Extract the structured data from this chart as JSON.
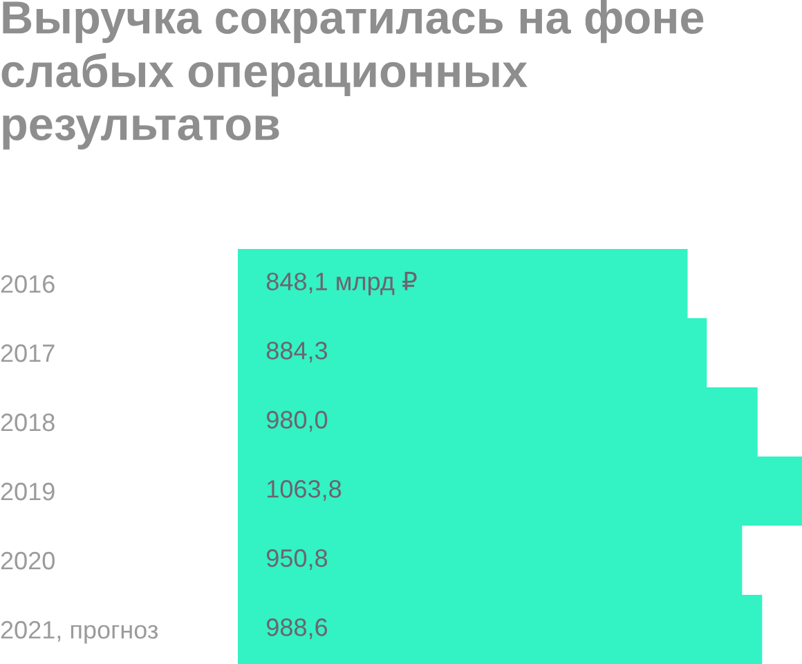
{
  "chart_data": {
    "type": "bar",
    "orientation": "horizontal",
    "title": "Выручка сократилась на фоне слабых операционных результатов",
    "categories": [
      "2016",
      "2017",
      "2018",
      "2019",
      "2020",
      "2021, прогноз"
    ],
    "values": [
      848.1,
      884.3,
      980.0,
      1063.8,
      950.8,
      988.6
    ],
    "value_labels": [
      "848,1 млрд ₽",
      "884,3",
      "980,0",
      "1063,8",
      "950,8",
      "988,6"
    ],
    "color": "#33f2c4",
    "grid": false,
    "legend": false
  }
}
